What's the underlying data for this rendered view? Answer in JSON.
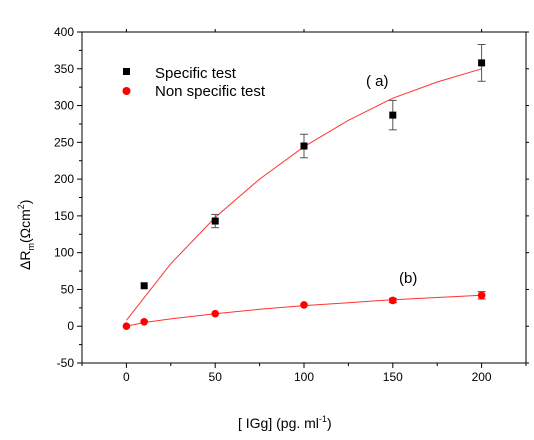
{
  "chart_data": {
    "type": "scatter",
    "xlabel": "[ IGg] (pg. ml",
    "xlabel_sup": "-1",
    "xlabel_close": ")",
    "ylabel": "ΔR",
    "ylabel_sub": "m",
    "ylabel_rest": "(Ωcm",
    "ylabel_sup": "2",
    "ylabel_close": ")",
    "xlim": [
      -25,
      225
    ],
    "ylim": [
      -50,
      400
    ],
    "x_ticks": [
      0,
      50,
      100,
      150,
      200
    ],
    "y_ticks": [
      -50,
      0,
      50,
      100,
      150,
      200,
      250,
      300,
      350,
      400
    ],
    "x_tick_labels": [
      "0",
      "50",
      "100",
      "150",
      "200"
    ],
    "y_tick_labels": [
      "-50",
      "0",
      "50",
      "100",
      "150",
      "200",
      "250",
      "300",
      "350",
      "400"
    ],
    "legend_position": "top-left",
    "grid": false,
    "series": [
      {
        "name": "Specific test",
        "marker": "square",
        "color": "#000000",
        "x": [
          10,
          50,
          100,
          150,
          200
        ],
        "y": [
          55,
          143,
          245,
          287,
          358
        ],
        "err": [
          0,
          9,
          16,
          20,
          25
        ],
        "fit_x": [
          0,
          25,
          50,
          75,
          100,
          125,
          150,
          175,
          200
        ],
        "fit_y": [
          8,
          85,
          148,
          200,
          244,
          280,
          310,
          332,
          350
        ],
        "fit_color": "#ff3333",
        "annotation": "( a)"
      },
      {
        "name": "Non specific test",
        "marker": "circle",
        "color": "#ff0000",
        "x": [
          0,
          10,
          50,
          100,
          150,
          200
        ],
        "y": [
          0,
          6,
          17,
          29,
          35,
          42
        ],
        "err": [
          0,
          0,
          0,
          0,
          3,
          5
        ],
        "fit_x": [
          0,
          10,
          25,
          50,
          75,
          100,
          125,
          150,
          175,
          200
        ],
        "fit_y": [
          0,
          5,
          10,
          17,
          23,
          28,
          32,
          36,
          39,
          42
        ],
        "fit_color": "#ff3333",
        "annotation": "(b)"
      }
    ]
  }
}
